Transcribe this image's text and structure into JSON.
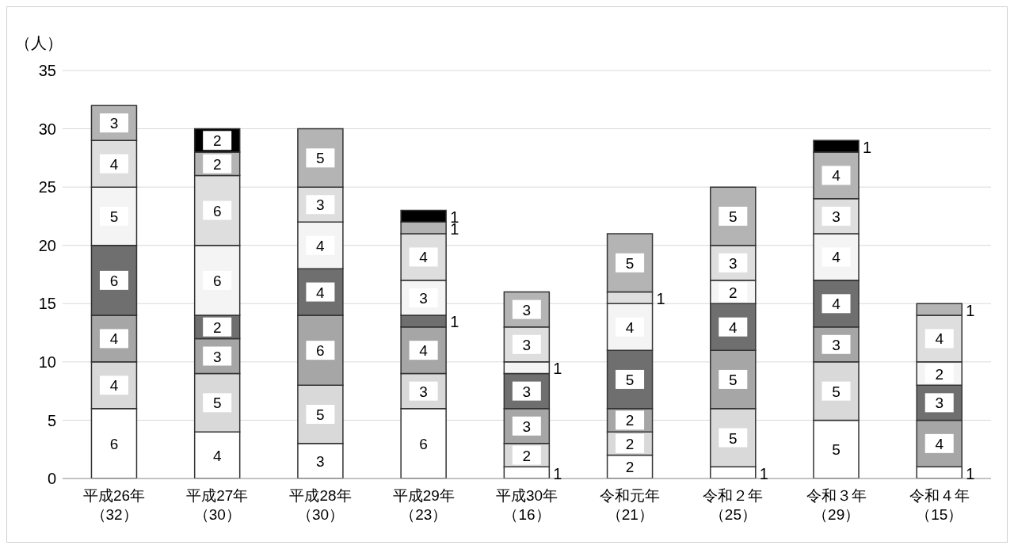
{
  "chart_data": {
    "type": "bar",
    "stacked": true,
    "ylabel": "（人）",
    "categories": [
      "平成26年（32）",
      "平成27年（30）",
      "平成28年（30）",
      "平成29年（23）",
      "平成30年（16）",
      "令和元年（21）",
      "令和２年（25）",
      "令和３年（29）",
      "令和４年（15）"
    ],
    "series": [
      {
        "color": "#ffffff",
        "values": [
          6,
          4,
          3,
          6,
          1,
          2,
          1,
          5,
          1
        ]
      },
      {
        "color": "#d9d9d9",
        "values": [
          4,
          5,
          5,
          3,
          2,
          2,
          5,
          5,
          null
        ]
      },
      {
        "color": "#a6a6a6",
        "values": [
          4,
          3,
          6,
          4,
          3,
          2,
          5,
          3,
          4
        ]
      },
      {
        "color": "#6f6f6f",
        "values": [
          6,
          2,
          4,
          1,
          3,
          5,
          4,
          4,
          3
        ]
      },
      {
        "color": "#f4f4f4",
        "values": [
          5,
          6,
          4,
          3,
          1,
          4,
          2,
          4,
          2
        ]
      },
      {
        "color": "#dedede",
        "values": [
          4,
          6,
          3,
          4,
          3,
          1,
          3,
          3,
          4
        ]
      },
      {
        "color": "#b4b4b4",
        "values": [
          3,
          2,
          5,
          1,
          3,
          5,
          5,
          4,
          1
        ]
      },
      {
        "color": "#000000",
        "values": [
          null,
          2,
          null,
          1,
          null,
          null,
          null,
          1,
          null
        ]
      }
    ],
    "ylim": [
      0,
      35
    ],
    "yticks": [
      0,
      5,
      10,
      15,
      20,
      25,
      30,
      35
    ],
    "grid": "y",
    "data_labels": true
  }
}
